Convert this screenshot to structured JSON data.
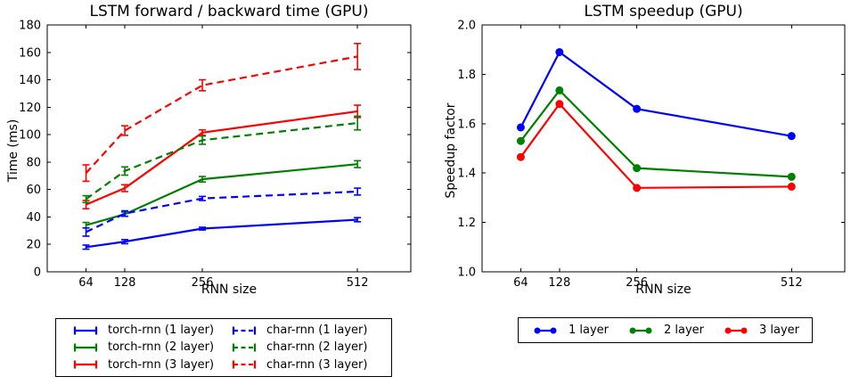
{
  "figure": {
    "background": "#ffffff",
    "axis_color": "#000000"
  },
  "chart_data": [
    {
      "type": "line",
      "title": "LSTM forward / backward time (GPU)",
      "xlabel": "RNN size",
      "ylabel": "Time (ms)",
      "x": [
        64,
        128,
        256,
        512
      ],
      "xlim": [
        0,
        600
      ],
      "ylim": [
        0,
        180
      ],
      "xtick_values": [
        64,
        128,
        256,
        512
      ],
      "xtick_labels": [
        "64",
        "128",
        "256",
        "512"
      ],
      "ytick_values": [
        0,
        20,
        40,
        60,
        80,
        100,
        120,
        140,
        160,
        180
      ],
      "ytick_labels": [
        "0",
        "20",
        "40",
        "60",
        "80",
        "100",
        "120",
        "140",
        "160",
        "180"
      ],
      "grid": false,
      "legend_position": "below-2col",
      "series": [
        {
          "name": "torch-rnn (1 layer)",
          "color": "#0000ff",
          "style": "solid",
          "marker": "none",
          "values": [
            18,
            22,
            31.5,
            38
          ],
          "yerr": [
            1.5,
            1.5,
            1,
            1.5
          ]
        },
        {
          "name": "torch-rnn (2 layer)",
          "color": "#008000",
          "style": "solid",
          "marker": "none",
          "values": [
            34,
            42,
            67.5,
            78.5
          ],
          "yerr": [
            2,
            1.5,
            2,
            2.5
          ]
        },
        {
          "name": "torch-rnn (3 layer)",
          "color": "#ff0000",
          "style": "solid",
          "marker": "none",
          "values": [
            49,
            61,
            101.5,
            117
          ],
          "yerr": [
            3,
            2.5,
            2,
            4.5
          ]
        },
        {
          "name": "char-rnn (1 layer)",
          "color": "#0000ff",
          "style": "dashed",
          "marker": "none",
          "values": [
            29,
            42.5,
            53.5,
            58.5
          ],
          "yerr": [
            3,
            2,
            1.5,
            2.5
          ]
        },
        {
          "name": "char-rnn (2 layer)",
          "color": "#008000",
          "style": "dashed",
          "marker": "none",
          "values": [
            53,
            73.5,
            96,
            108.5
          ],
          "yerr": [
            2.5,
            3,
            3,
            5
          ]
        },
        {
          "name": "char-rnn (3 layer)",
          "color": "#ff0000",
          "style": "dashed",
          "marker": "none",
          "values": [
            72,
            103,
            136,
            157
          ],
          "yerr": [
            6,
            3.5,
            4,
            9.5
          ]
        }
      ]
    },
    {
      "type": "line",
      "title": "LSTM speedup (GPU)",
      "xlabel": "RNN size",
      "ylabel": "Speedup factor",
      "x": [
        64,
        128,
        256,
        512
      ],
      "xlim": [
        0,
        600
      ],
      "ylim": [
        1.0,
        2.0
      ],
      "xtick_values": [
        64,
        128,
        256,
        512
      ],
      "xtick_labels": [
        "64",
        "128",
        "256",
        "512"
      ],
      "ytick_values": [
        1.0,
        1.2,
        1.4,
        1.6,
        1.8,
        2.0
      ],
      "ytick_labels": [
        "1.0",
        "1.2",
        "1.4",
        "1.6",
        "1.8",
        "2.0"
      ],
      "grid": false,
      "legend_position": "below-row",
      "series": [
        {
          "name": "1 layer",
          "color": "#0000ff",
          "style": "solid",
          "marker": "circle",
          "values": [
            1.585,
            1.89,
            1.66,
            1.55
          ]
        },
        {
          "name": "2 layer",
          "color": "#008000",
          "style": "solid",
          "marker": "circle",
          "values": [
            1.53,
            1.735,
            1.42,
            1.385
          ]
        },
        {
          "name": "3 layer",
          "color": "#ff0000",
          "style": "solid",
          "marker": "circle",
          "values": [
            1.465,
            1.68,
            1.34,
            1.345
          ]
        }
      ]
    }
  ]
}
